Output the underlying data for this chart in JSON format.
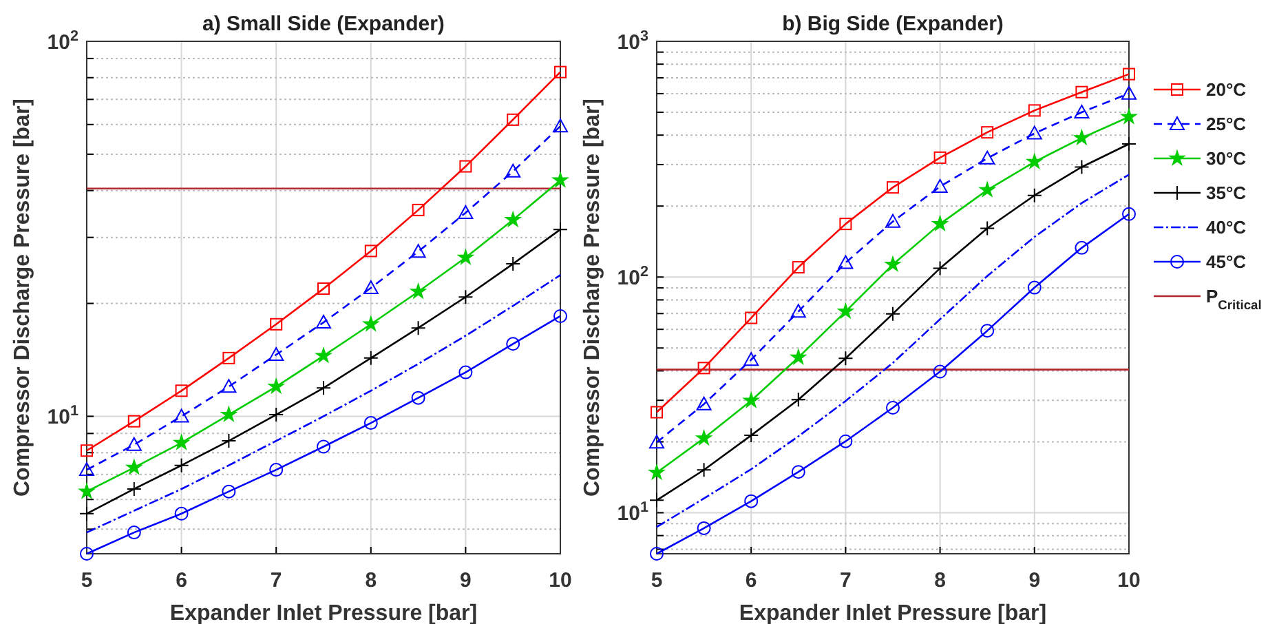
{
  "chart_data": [
    {
      "type": "line",
      "title": "a) Small Side (Expander)",
      "xlabel": "Expander Inlet Pressure [bar]",
      "ylabel": "Compressor Discharge Pressure [bar]",
      "log": true,
      "grid": true,
      "legend": false,
      "x": [
        5,
        5.5,
        6,
        6.5,
        7,
        7.5,
        8,
        8.5,
        9,
        9.5,
        10
      ],
      "xlim": [
        5,
        10
      ],
      "xticks": [
        5,
        6,
        7,
        8,
        9,
        10
      ],
      "ylim": [
        4.3,
        100
      ],
      "yticks": [
        {
          "value": 5,
          "label": null
        },
        {
          "value": 6,
          "label": null
        },
        {
          "value": 7,
          "label": null
        },
        {
          "value": 8,
          "label": null
        },
        {
          "value": 9,
          "label": null
        },
        {
          "value": 10,
          "label": "10$^{1}$"
        },
        {
          "value": 20,
          "label": null
        },
        {
          "value": 30,
          "label": null
        },
        {
          "value": 40,
          "label": null
        },
        {
          "value": 50,
          "label": null
        },
        {
          "value": 60,
          "label": null
        },
        {
          "value": 70,
          "label": null
        },
        {
          "value": 80,
          "label": null
        },
        {
          "value": 90,
          "label": null
        },
        {
          "value": 100,
          "label": "10$^{2}$"
        }
      ],
      "ref_lines": [
        {
          "axis": "y",
          "value": 40.5,
          "color": "#b2262e"
        }
      ],
      "series": [
        {
          "color": "#ff0000",
          "marker": "square",
          "line_style": "solid",
          "values": [
            8.1,
            9.7,
            11.7,
            14.3,
            17.6,
            21.9,
            27.6,
            35.5,
            46.4,
            61.8,
            82.8
          ]
        },
        {
          "color": "#0000ff",
          "marker": "triangle",
          "line_style": "dashed",
          "values": [
            7.2,
            8.4,
            10.0,
            12.0,
            14.6,
            17.8,
            22.0,
            27.5,
            34.9,
            45.0,
            59.4
          ]
        },
        {
          "color": "#00cc00",
          "marker": "star",
          "line_style": "solid",
          "values": [
            6.3,
            7.3,
            8.5,
            10.1,
            12.0,
            14.5,
            17.6,
            21.5,
            26.5,
            33.4,
            42.6
          ]
        },
        {
          "color": "#000000",
          "marker": "cross",
          "line_style": "solid",
          "values": [
            5.5,
            6.4,
            7.4,
            8.6,
            10.1,
            11.9,
            14.3,
            17.2,
            20.8,
            25.5,
            31.5
          ]
        },
        {
          "color": "#0000ff",
          "marker": "none",
          "line_style": "dotted",
          "values": [
            4.9,
            5.6,
            6.4,
            7.4,
            8.6,
            10.0,
            11.7,
            13.8,
            16.4,
            19.7,
            23.8
          ]
        },
        {
          "color": "#0000ff",
          "marker": "circle",
          "line_style": "solid",
          "values": [
            4.3,
            4.9,
            5.5,
            6.3,
            7.2,
            8.3,
            9.6,
            11.2,
            13.1,
            15.6,
            18.5
          ]
        }
      ]
    },
    {
      "type": "line",
      "title": "b) Big Side (Expander)",
      "xlabel": "Expander Inlet Pressure [bar]",
      "ylabel": "Compressor Discharge Pressure [bar]",
      "log": true,
      "grid": true,
      "legend": "right",
      "x": [
        5,
        5.5,
        6,
        6.5,
        7,
        7.5,
        8,
        8.5,
        9,
        9.5,
        10
      ],
      "xlim": [
        5,
        10
      ],
      "xticks": [
        5,
        6,
        7,
        8,
        9,
        10
      ],
      "ylim": [
        6.7,
        1000
      ],
      "yticks": [
        {
          "value": 7,
          "label": null
        },
        {
          "value": 8,
          "label": null
        },
        {
          "value": 9,
          "label": null
        },
        {
          "value": 10,
          "label": "10$^{1}$"
        },
        {
          "value": 20,
          "label": null
        },
        {
          "value": 30,
          "label": null
        },
        {
          "value": 40,
          "label": null
        },
        {
          "value": 50,
          "label": null
        },
        {
          "value": 60,
          "label": null
        },
        {
          "value": 70,
          "label": null
        },
        {
          "value": 80,
          "label": null
        },
        {
          "value": 90,
          "label": null
        },
        {
          "value": 100,
          "label": "10$^{2}$"
        },
        {
          "value": 200,
          "label": null
        },
        {
          "value": 300,
          "label": null
        },
        {
          "value": 400,
          "label": null
        },
        {
          "value": 500,
          "label": null
        },
        {
          "value": 600,
          "label": null
        },
        {
          "value": 700,
          "label": null
        },
        {
          "value": 800,
          "label": null
        },
        {
          "value": 900,
          "label": null
        },
        {
          "value": 1000,
          "label": "10$^{3}$"
        }
      ],
      "ref_lines": [
        {
          "axis": "y",
          "value": 40.5,
          "color": "#b2262e",
          "label": "P$_{Critical}$"
        }
      ],
      "series": [
        {
          "name": "20°C",
          "color": "#ff0000",
          "marker": "square",
          "line_style": "solid",
          "values": [
            26.7,
            41.1,
            67.1,
            110,
            168,
            240,
            321,
            411,
            509,
            609,
            726
          ]
        },
        {
          "name": "25°C",
          "color": "#0000ff",
          "marker": "triangle",
          "line_style": "dashed",
          "values": [
            19.9,
            28.9,
            44.6,
            71.4,
            115,
            172,
            242,
            319,
            407,
            500,
            601
          ]
        },
        {
          "name": "30°C",
          "color": "#00cc00",
          "marker": "star",
          "line_style": "solid",
          "values": [
            14.8,
            20.7,
            29.9,
            45.6,
            71.4,
            113,
            168,
            234,
            308,
            389,
            478
          ]
        },
        {
          "name": "35°C",
          "color": "#000000",
          "marker": "cross",
          "line_style": "solid",
          "values": [
            11.3,
            15.2,
            21.3,
            30.2,
            45.2,
            69.8,
            109,
            161,
            222,
            293,
            367
          ]
        },
        {
          "name": "40°C",
          "color": "#0000ff",
          "marker": "none",
          "line_style": "dotted",
          "values": [
            8.7,
            11.5,
            15.3,
            21.1,
            29.8,
            43.2,
            66.2,
            101,
            148,
            206,
            272
          ]
        },
        {
          "name": "45°C",
          "color": "#0000ff",
          "marker": "circle",
          "line_style": "solid",
          "values": [
            6.7,
            8.6,
            11.2,
            14.9,
            20.1,
            27.9,
            39.7,
            59.2,
            90.2,
            133,
            185
          ]
        }
      ]
    }
  ]
}
